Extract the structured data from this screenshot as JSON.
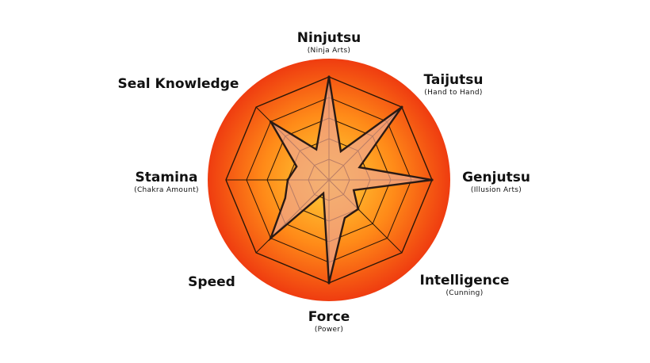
{
  "chart_data": {
    "type": "radar",
    "axes": [
      {
        "label": "Ninjutsu",
        "sublabel": "(Ninja Arts)"
      },
      {
        "label": "Taijutsu",
        "sublabel": "(Hand to Hand)"
      },
      {
        "label": "Genjutsu",
        "sublabel": "(Illusion Arts)"
      },
      {
        "label": "Intelligence",
        "sublabel": "(Cunning)"
      },
      {
        "label": "Force",
        "sublabel": "(Power)"
      },
      {
        "label": "Speed",
        "sublabel": ""
      },
      {
        "label": "Stamina",
        "sublabel": "(Chakra Amount)"
      },
      {
        "label": "Seal Knowledge",
        "sublabel": ""
      }
    ],
    "levels": 5,
    "max": 5,
    "series": [
      {
        "name": "",
        "peaks": [
          5,
          5,
          5,
          2,
          5,
          4,
          2,
          4
        ],
        "valleys": [
          1.5,
          1.6,
          1.3,
          2,
          0.7,
          2.3,
          1.7,
          1.6
        ],
        "fill": "#f0a58a",
        "stroke": "#2a1a14"
      }
    ],
    "colors": {
      "disc_center": "#ffd23a",
      "disc_mid": "#ff8a18",
      "disc_edge": "#ef3c10",
      "grid": "#2b1708"
    }
  }
}
